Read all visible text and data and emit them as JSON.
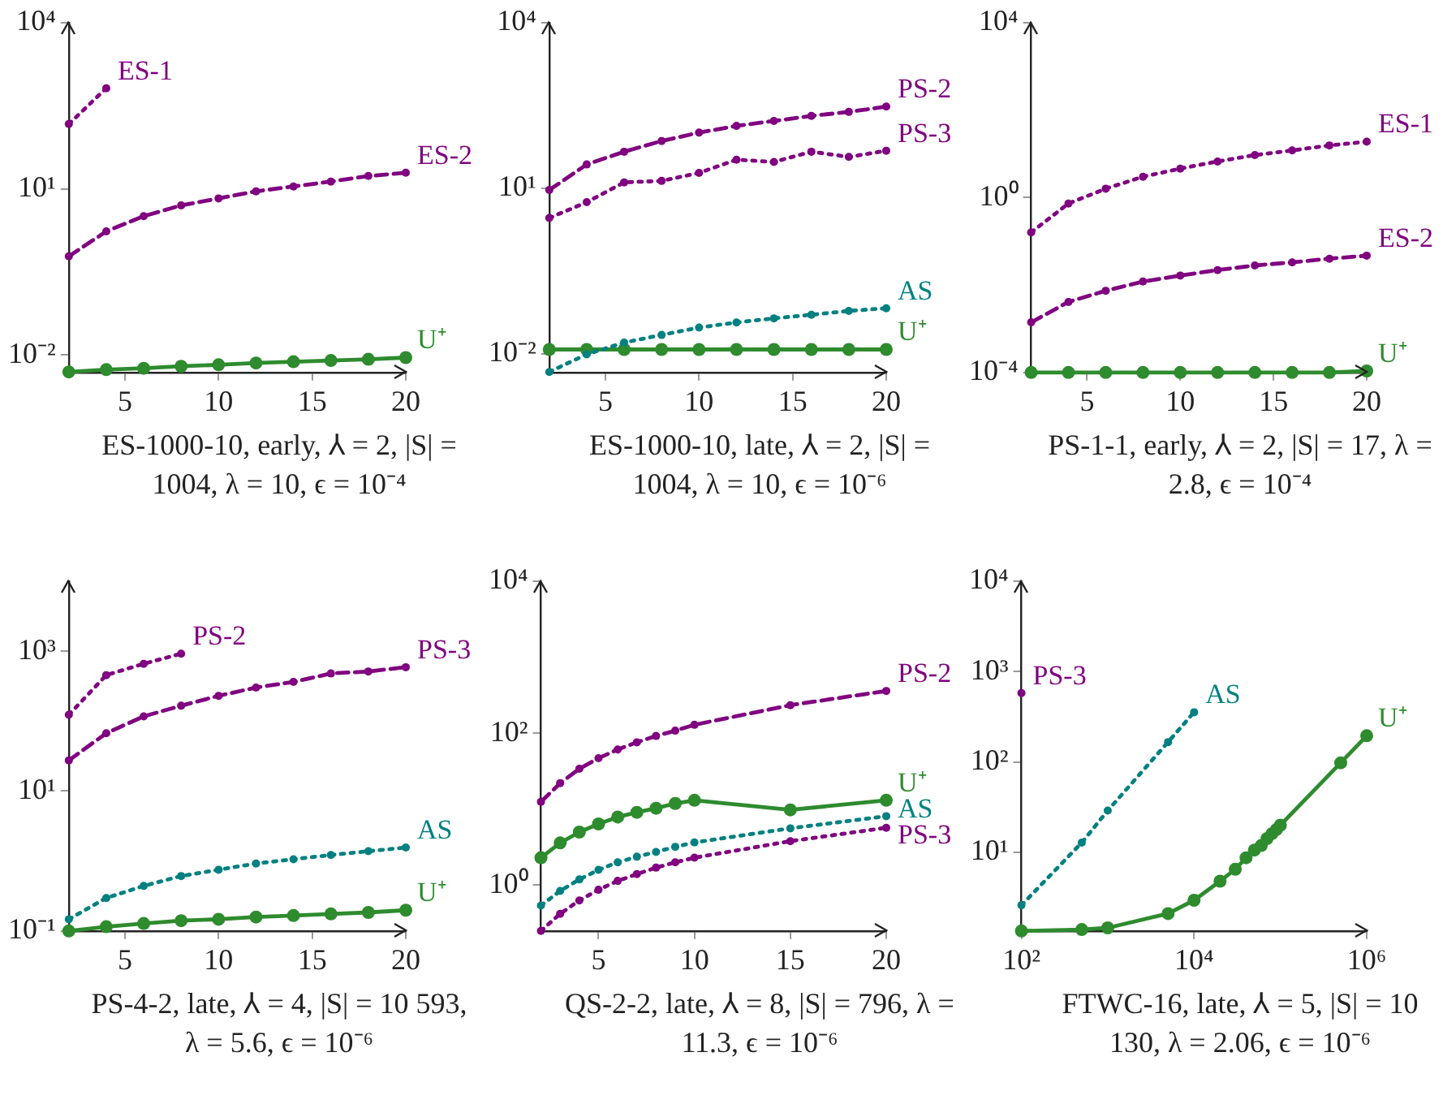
{
  "chart_data": [
    {
      "type": "line",
      "xlabel": "ES-1000-10, early, ⅄ = 2, |S| = 1004, λ = 10, ϵ = 10⁻⁴",
      "log": "y",
      "marker": "circle",
      "xlim": [
        2,
        20
      ],
      "xticks": [
        5,
        10,
        15,
        20
      ],
      "ylim": [
        0.0048,
        10000
      ],
      "yticks": [
        {
          "value": 0.01,
          "label": "10⁻²"
        },
        {
          "value": 10,
          "label": "10¹"
        },
        {
          "value": 10000,
          "label": "10⁴"
        }
      ],
      "x": [
        2,
        4,
        6,
        8,
        10,
        12,
        14,
        16,
        18,
        20
      ],
      "series": [
        {
          "name": "ES-1",
          "color": "#800080",
          "line_style": "dotted",
          "x": [
            2,
            4
          ],
          "values": [
            148,
            656
          ]
        },
        {
          "name": "ES-2",
          "color": "#800080",
          "line_style": "dashed",
          "values": [
            0.6,
            1.7,
            3.2,
            5,
            6.7,
            9,
            11,
            13.5,
            17,
            19.5
          ]
        },
        {
          "name": "U⁺",
          "color": "#2e8b2e",
          "line_style": "solid",
          "values": [
            0.0049,
            0.0054,
            0.0057,
            0.0062,
            0.0066,
            0.0071,
            0.0075,
            0.0079,
            0.0083,
            0.0089
          ]
        }
      ]
    },
    {
      "type": "line",
      "xlabel": "ES-1000-10, late, ⅄ = 2, |S| = 1004, λ = 10, ϵ = 10⁻⁶",
      "log": "y",
      "marker": "circle",
      "xlim": [
        2,
        20
      ],
      "xticks": [
        5,
        10,
        15,
        20
      ],
      "ylim": [
        0.0046,
        10000
      ],
      "yticks": [
        {
          "value": 0.01,
          "label": "10⁻²"
        },
        {
          "value": 10,
          "label": "10¹"
        },
        {
          "value": 10000,
          "label": "10⁴"
        }
      ],
      "x": [
        2,
        4,
        6,
        8,
        10,
        12,
        14,
        16,
        18,
        20
      ],
      "series": [
        {
          "name": "PS-2",
          "color": "#800080",
          "line_style": "dashed",
          "values": [
            9.3,
            27,
            46,
            72,
            102,
            135,
            166,
            205,
            242,
            302
          ]
        },
        {
          "name": "PS-3",
          "color": "#800080",
          "line_style": "dotted",
          "values": [
            2.9,
            5.6,
            12.8,
            13.6,
            19,
            33,
            30,
            46,
            37,
            48
          ]
        },
        {
          "name": "AS",
          "color": "#008080",
          "line_style": "dotted",
          "values": [
            0.0047,
            0.0098,
            0.016,
            0.022,
            0.03,
            0.037,
            0.044,
            0.051,
            0.06,
            0.067
          ]
        },
        {
          "name": "U⁺",
          "color": "#2e8b2e",
          "line_style": "solid",
          "values": [
            0.012,
            0.012,
            0.012,
            0.012,
            0.012,
            0.012,
            0.012,
            0.012,
            0.012,
            0.012
          ]
        }
      ]
    },
    {
      "type": "line",
      "xlabel": "PS-1-1, early, ⅄ = 2, |S| = 17, λ = 2.8, ϵ = 10⁻⁴",
      "log": "y",
      "marker": "circle",
      "xlim": [
        2,
        20
      ],
      "xticks": [
        5,
        10,
        15,
        20
      ],
      "ylim": [
        0.0001,
        10000
      ],
      "yticks": [
        {
          "value": 0.0001,
          "label": "10⁻⁴"
        },
        {
          "value": 1,
          "label": "10⁰"
        },
        {
          "value": 10000,
          "label": "10⁴"
        }
      ],
      "x": [
        2,
        4,
        6,
        8,
        10,
        12,
        14,
        16,
        18,
        20
      ],
      "series": [
        {
          "name": "ES-1",
          "color": "#800080",
          "line_style": "dotted",
          "values": [
            0.16,
            0.73,
            1.6,
            3,
            4.6,
            6.7,
            9.4,
            12,
            15.6,
            19
          ]
        },
        {
          "name": "ES-2",
          "color": "#800080",
          "line_style": "dashed",
          "values": [
            0.0014,
            0.0041,
            0.0074,
            0.012,
            0.0165,
            0.022,
            0.028,
            0.033,
            0.04,
            0.047
          ]
        },
        {
          "name": "U⁺",
          "color": "#2e8b2e",
          "line_style": "solid",
          "values": [
            0.0001,
            0.0001,
            0.0001,
            0.0001,
            0.0001,
            0.0001,
            0.0001,
            0.0001,
            0.0001,
            0.000108
          ]
        }
      ]
    },
    {
      "type": "line",
      "xlabel": "PS-4-2, late, ⅄ = 4, |S| = 10 593, λ = 5.6, ϵ = 10⁻⁶",
      "log": "y",
      "marker": "circle",
      "xlim": [
        2,
        20
      ],
      "xticks": [
        5,
        10,
        15,
        20
      ],
      "ylim": [
        0.1,
        10000
      ],
      "yticks": [
        {
          "value": 0.1,
          "label": "10⁻¹"
        },
        {
          "value": 10,
          "label": "10¹"
        },
        {
          "value": 1000,
          "label": "10³"
        }
      ],
      "x": [
        2,
        4,
        6,
        8,
        10,
        12,
        14,
        16,
        18,
        20
      ],
      "series": [
        {
          "name": "PS-2",
          "color": "#800080",
          "line_style": "dotted",
          "x": [
            2,
            4,
            6,
            8
          ],
          "values": [
            123,
            455,
            660,
            920
          ]
        },
        {
          "name": "PS-3",
          "color": "#800080",
          "line_style": "dashed",
          "values": [
            27.5,
            67,
            117,
            166,
            230,
            302,
            363,
            480,
            513,
            590
          ]
        },
        {
          "name": "AS",
          "color": "#008080",
          "line_style": "dotted",
          "values": [
            0.147,
            0.296,
            0.44,
            0.61,
            0.75,
            0.92,
            1.06,
            1.22,
            1.38,
            1.56
          ]
        },
        {
          "name": "U⁺",
          "color": "#2e8b2e",
          "line_style": "solid",
          "values": [
            0.1,
            0.115,
            0.128,
            0.14,
            0.147,
            0.158,
            0.166,
            0.175,
            0.184,
            0.198
          ]
        }
      ]
    },
    {
      "type": "line",
      "xlabel": "QS-2-2, late, ⅄ = 8, |S| = 796, λ = 11.3, ϵ = 10⁻⁶",
      "log": "y",
      "marker": "circle",
      "xlim": [
        2,
        20
      ],
      "xticks": [
        5,
        10,
        15,
        20
      ],
      "ylim": [
        0.25,
        10000
      ],
      "yticks": [
        {
          "value": 1,
          "label": "10⁰"
        },
        {
          "value": 100,
          "label": "10²"
        },
        {
          "value": 10000,
          "label": "10⁴"
        }
      ],
      "x": [
        2,
        3,
        4,
        5,
        6,
        7,
        8,
        9,
        10,
        15,
        20
      ],
      "series": [
        {
          "name": "PS-2",
          "color": "#800080",
          "line_style": "dashed",
          "values": [
            12.5,
            22,
            34,
            47,
            61,
            76,
            92,
            108,
            129,
            234,
            360
          ]
        },
        {
          "name": "U⁺",
          "color": "#2e8b2e",
          "line_style": "solid",
          "values": [
            2.3,
            3.6,
            5,
            6.4,
            7.9,
            9.1,
            10.3,
            11.9,
            13.1,
            9.8,
            13.1
          ]
        },
        {
          "name": "AS",
          "color": "#008080",
          "line_style": "dotted",
          "values": [
            0.54,
            0.84,
            1.19,
            1.59,
            2,
            2.37,
            2.74,
            3.2,
            3.65,
            5.6,
            8.1
          ]
        },
        {
          "name": "PS-3",
          "color": "#800080",
          "line_style": "dotted",
          "values": [
            0.25,
            0.42,
            0.63,
            0.87,
            1.14,
            1.4,
            1.7,
            2,
            2.3,
            3.8,
            5.7
          ]
        }
      ]
    },
    {
      "type": "line",
      "xlabel": "FTWC-16, late, ⅄ = 5, |S| = 10 130, λ = 2.06, ϵ = 10⁻⁶",
      "log": "xy",
      "marker": "circle",
      "xlim": [
        100,
        1000000
      ],
      "xticks": [
        {
          "value": 100,
          "label": "10²"
        },
        {
          "value": 10000,
          "label": "10⁴"
        },
        {
          "value": 1000000,
          "label": "10⁶"
        }
      ],
      "ylim": [
        1.35,
        10000
      ],
      "yticks": [
        {
          "value": 10,
          "label": "10¹"
        },
        {
          "value": 100,
          "label": "10²"
        },
        {
          "value": 1000,
          "label": "10³"
        },
        {
          "value": 10000,
          "label": "10⁴"
        }
      ],
      "series": [
        {
          "name": "PS-3",
          "color": "#800080",
          "line_style": "dotted",
          "x": [
            100
          ],
          "values": [
            580
          ]
        },
        {
          "name": "AS",
          "color": "#008080",
          "line_style": "dotted",
          "x": [
            100,
            500,
            1000,
            5000,
            10000
          ],
          "values": [
            2.6,
            12.8,
            29,
            166,
            355
          ]
        },
        {
          "name": "U⁺",
          "color": "#2e8b2e",
          "line_style": "solid",
          "x": [
            100,
            500,
            1000,
            5000,
            10000,
            20000,
            30000,
            40000,
            50000,
            60000,
            70000,
            80000,
            90000,
            100000,
            500000,
            1000000
          ],
          "values": [
            1.35,
            1.4,
            1.46,
            2.1,
            2.95,
            4.8,
            6.5,
            8.7,
            10.6,
            11.9,
            14.2,
            16.1,
            17.9,
            20,
            98,
            195
          ]
        }
      ]
    }
  ]
}
